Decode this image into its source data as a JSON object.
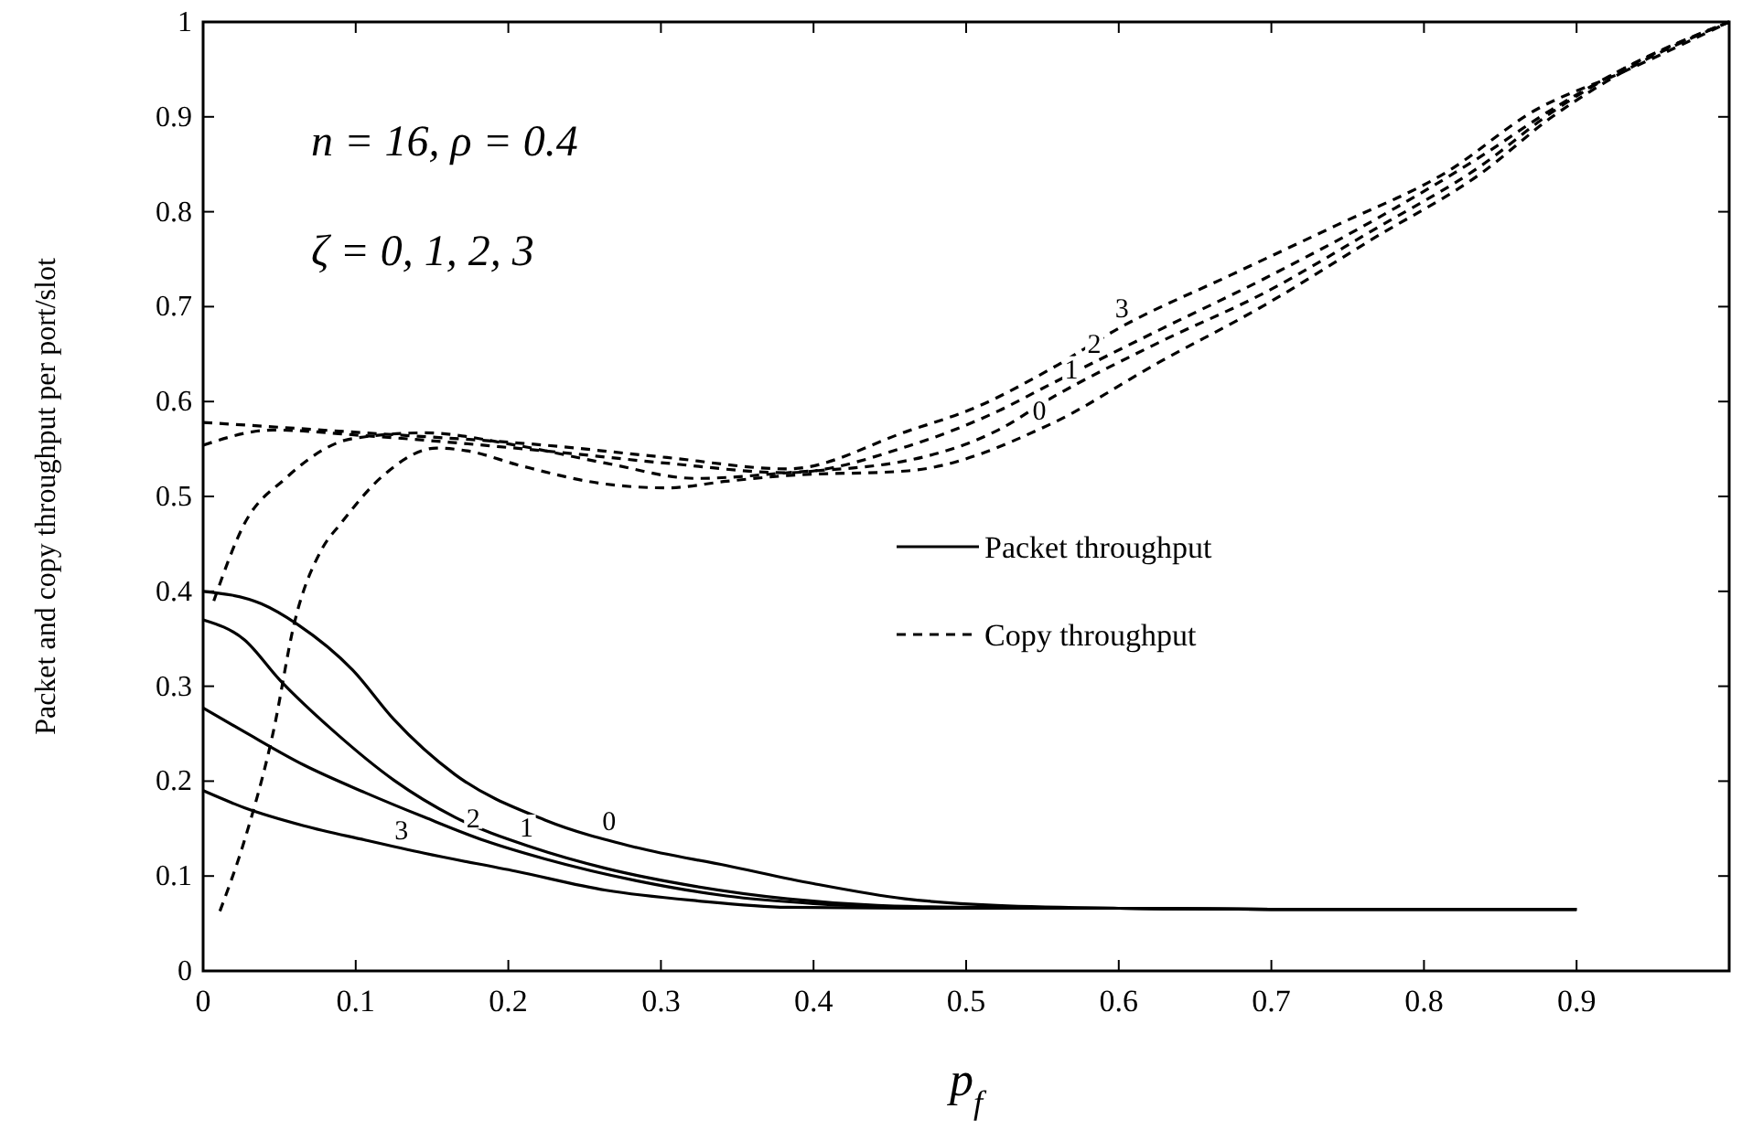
{
  "chart_data": {
    "type": "line",
    "xlabel": "p$_{f}$",
    "ylabel": "Packet and copy throughput per port/slot",
    "xlim": [
      0,
      1
    ],
    "ylim": [
      0,
      1
    ],
    "xticks": [
      0,
      0.1,
      0.2,
      0.3,
      0.4,
      0.5,
      0.6,
      0.7,
      0.8,
      0.9,
      {
        "value": 1,
        "label": null
      }
    ],
    "yticks": [
      0,
      0.1,
      0.2,
      0.3,
      0.4,
      0.5,
      0.6,
      0.7,
      0.8,
      0.9,
      1
    ],
    "grid": false,
    "legend": "right",
    "marker": "none",
    "annotations": [
      "n = 16, ρ = 0.4",
      "ζ = 0, 1, 2, 3",
      {
        "text": "0",
        "x": 0.266,
        "y": 0.139
      },
      {
        "text": "1",
        "x": 0.212,
        "y": 0.132
      },
      {
        "text": "2",
        "x": 0.177,
        "y": 0.142
      },
      {
        "text": "3",
        "x": 0.13,
        "y": 0.129
      },
      {
        "text": "0",
        "x": 0.548,
        "y": 0.571
      },
      {
        "text": "1",
        "x": 0.569,
        "y": 0.615
      },
      {
        "text": "2",
        "x": 0.584,
        "y": 0.642
      },
      {
        "text": "3",
        "x": 0.602,
        "y": 0.679
      }
    ],
    "series": [
      {
        "name": "Packet throughput",
        "color": "#000000",
        "line_style": "solid",
        "x": [
          0,
          0.038,
          0.062,
          0.098,
          0.125,
          0.165,
          0.224,
          0.284,
          0.343,
          0.4,
          0.46,
          0.52,
          0.6,
          0.7,
          0.8,
          0.9
        ],
        "values": [
          0.4,
          0.387,
          0.365,
          0.317,
          0.265,
          0.207,
          0.159,
          0.13,
          0.111,
          0.092,
          0.076,
          0.069,
          0.066,
          0.065,
          0.065,
          0.065
        ]
      },
      {
        "color": "#000000",
        "line_style": "solid",
        "x": [
          0,
          0.027,
          0.05,
          0.086,
          0.125,
          0.165,
          0.216,
          0.264,
          0.323,
          0.383,
          0.442,
          0.5,
          0.6,
          0.7,
          0.8,
          0.9
        ],
        "values": [
          0.37,
          0.349,
          0.307,
          0.252,
          0.201,
          0.162,
          0.13,
          0.108,
          0.089,
          0.076,
          0.069,
          0.067,
          0.066,
          0.065,
          0.065,
          0.065
        ]
      },
      {
        "color": "#000000",
        "line_style": "solid",
        "x": [
          0,
          0.027,
          0.066,
          0.106,
          0.145,
          0.185,
          0.224,
          0.284,
          0.343,
          0.4,
          0.46,
          0.52,
          0.6,
          0.7,
          0.8,
          0.9
        ],
        "values": [
          0.277,
          0.252,
          0.217,
          0.188,
          0.162,
          0.137,
          0.118,
          0.095,
          0.079,
          0.071,
          0.067,
          0.066,
          0.066,
          0.065,
          0.065,
          0.065
        ]
      },
      {
        "color": "#000000",
        "line_style": "solid",
        "x": [
          0,
          0.027,
          0.066,
          0.106,
          0.145,
          0.205,
          0.264,
          0.323,
          0.383,
          0.46,
          0.52,
          0.6,
          0.7,
          0.8,
          0.9
        ],
        "values": [
          0.19,
          0.172,
          0.153,
          0.138,
          0.124,
          0.105,
          0.085,
          0.074,
          0.067,
          0.066,
          0.066,
          0.066,
          0.065,
          0.065,
          0.065
        ]
      },
      {
        "name": "Copy throughput",
        "color": "#000000",
        "line_style": "dashed",
        "x": [
          0.011,
          0.027,
          0.046,
          0.06,
          0.078,
          0.09,
          0.118,
          0.153,
          0.173,
          0.209,
          0.264,
          0.304,
          0.343,
          0.383,
          0.462,
          0.555,
          0.626,
          0.696,
          0.766,
          0.837,
          0.884,
          0.93,
          1
        ],
        "values": [
          0.063,
          0.137,
          0.252,
          0.368,
          0.445,
          0.471,
          0.522,
          0.551,
          0.548,
          0.532,
          0.513,
          0.509,
          0.516,
          0.522,
          0.527,
          0.576,
          0.641,
          0.702,
          0.771,
          0.84,
          0.9,
          0.947,
          1
        ]
      },
      {
        "color": "#000000",
        "line_style": "dashed",
        "x": [
          0.007,
          0.027,
          0.054,
          0.098,
          0.145,
          0.205,
          0.264,
          0.323,
          0.383,
          0.462,
          0.521,
          0.555,
          0.626,
          0.696,
          0.766,
          0.837,
          0.884,
          0.93,
          1
        ],
        "values": [
          0.39,
          0.471,
          0.519,
          0.561,
          0.567,
          0.554,
          0.535,
          0.519,
          0.525,
          0.538,
          0.57,
          0.603,
          0.662,
          0.715,
          0.78,
          0.848,
          0.905,
          0.95,
          1
        ]
      },
      {
        "color": "#000000",
        "line_style": "dashed",
        "x": [
          0,
          0.046,
          0.106,
          0.224,
          0.304,
          0.383,
          0.462,
          0.521,
          0.555,
          0.626,
          0.696,
          0.766,
          0.837,
          0.884,
          0.93,
          1
        ],
        "values": [
          0.554,
          0.57,
          0.564,
          0.548,
          0.535,
          0.525,
          0.553,
          0.59,
          0.618,
          0.675,
          0.73,
          0.79,
          0.858,
          0.908,
          0.95,
          1
        ]
      },
      {
        "color": "#000000",
        "line_style": "dashed",
        "x": [
          0,
          0.106,
          0.224,
          0.304,
          0.383,
          0.462,
          0.508,
          0.555,
          0.602,
          0.673,
          0.743,
          0.813,
          0.874,
          0.93,
          1
        ],
        "values": [
          0.578,
          0.567,
          0.554,
          0.541,
          0.529,
          0.569,
          0.595,
          0.634,
          0.679,
          0.733,
          0.786,
          0.84,
          0.908,
          0.947,
          1
        ]
      }
    ]
  }
}
